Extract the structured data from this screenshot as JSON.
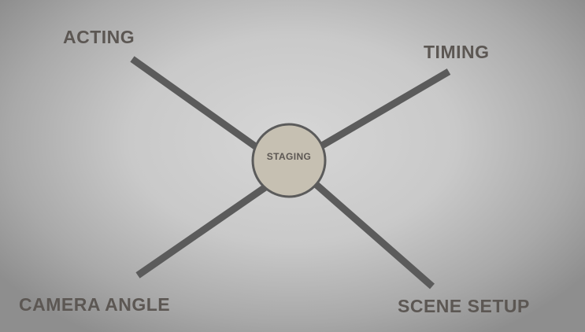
{
  "diagram": {
    "center": {
      "label": "STAGING"
    },
    "branches": [
      {
        "id": "top-left",
        "label": "ACTING"
      },
      {
        "id": "top-right",
        "label": "TIMING"
      },
      {
        "id": "bottom-left",
        "label": "CAMERA ANGLE"
      },
      {
        "id": "bottom-right",
        "label": "SCENE SETUP"
      }
    ]
  },
  "colors": {
    "line": "#5b5b5b",
    "hub_fill": "#c6c0b2",
    "text": "#5c5753"
  }
}
